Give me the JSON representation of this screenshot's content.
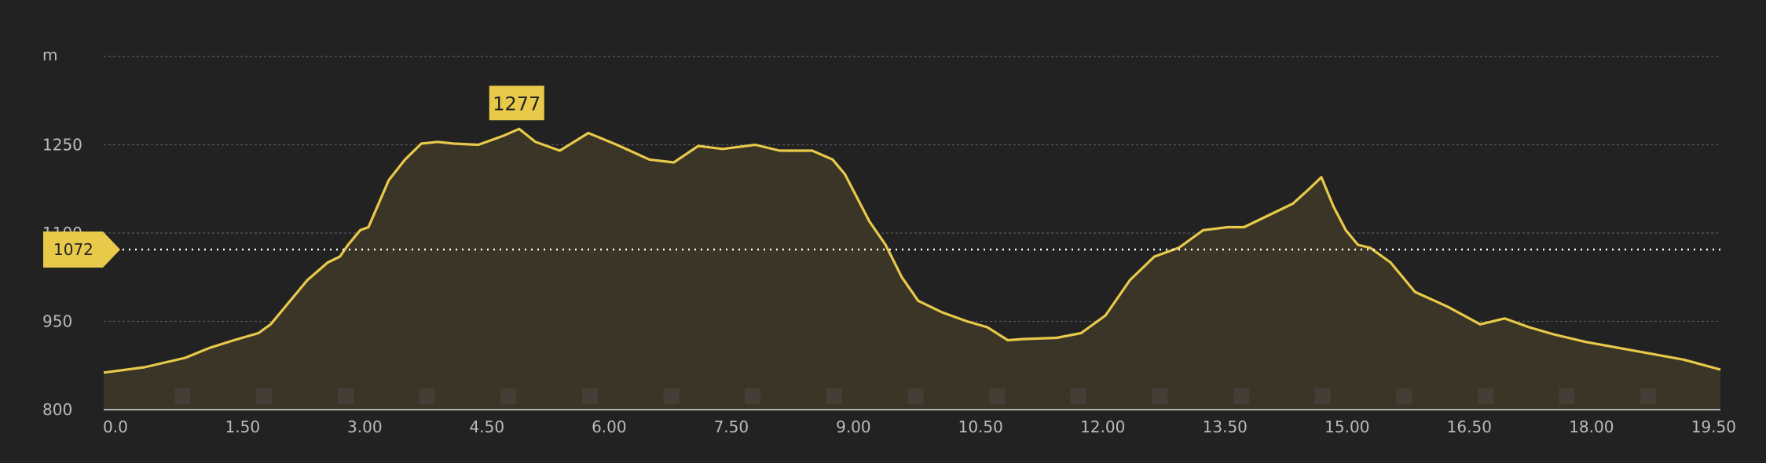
{
  "chart_data": {
    "type": "area",
    "y_unit_label": "m",
    "y_ticks": [
      800,
      950,
      1100,
      1250
    ],
    "ylim": [
      800,
      1400
    ],
    "x_ticks": [
      "0.0",
      "1.50",
      "3.00",
      "4.50",
      "6.00",
      "7.50",
      "9.00",
      "10.50",
      "12.00",
      "13.50",
      "15.00",
      "16.50",
      "18.00",
      "19.50"
    ],
    "xlim": [
      0,
      19.85
    ],
    "grid": true,
    "reference_line": {
      "value": 1072,
      "label": "1072"
    },
    "peak_marker": {
      "x": 5.1,
      "value": 1277,
      "label": "1277"
    },
    "series": [
      {
        "x": [
          0.0,
          0.5,
          1.0,
          1.3,
          1.6,
          1.9,
          2.05,
          2.2,
          2.5,
          2.75,
          2.9,
          3.0,
          3.15,
          3.25,
          3.5,
          3.7,
          3.9,
          4.1,
          4.3,
          4.6,
          4.9,
          5.1,
          5.3,
          5.6,
          5.95,
          6.3,
          6.7,
          7.0,
          7.3,
          7.6,
          8.0,
          8.3,
          8.7,
          8.95,
          9.1,
          9.4,
          9.6,
          9.8,
          10.0,
          10.3,
          10.6,
          10.85,
          11.1,
          11.3,
          11.7,
          12.0,
          12.3,
          12.6,
          12.9,
          13.2,
          13.5,
          13.8,
          14.0,
          14.3,
          14.6,
          14.8,
          14.95,
          15.1,
          15.25,
          15.4,
          15.55,
          15.8,
          16.1,
          16.5,
          16.9,
          17.2,
          17.5,
          17.8,
          18.2,
          18.6,
          19.0,
          19.4,
          19.85
        ],
        "values": [
          863,
          872,
          888,
          905,
          918,
          930,
          945,
          970,
          1020,
          1050,
          1060,
          1080,
          1105,
          1110,
          1190,
          1225,
          1252,
          1255,
          1252,
          1250,
          1265,
          1277,
          1255,
          1240,
          1270,
          1250,
          1225,
          1220,
          1248,
          1243,
          1250,
          1240,
          1240,
          1225,
          1200,
          1120,
          1080,
          1025,
          985,
          965,
          950,
          940,
          918,
          920,
          922,
          930,
          960,
          1020,
          1060,
          1075,
          1105,
          1110,
          1110,
          1130,
          1150,
          1175,
          1195,
          1145,
          1105,
          1080,
          1075,
          1050,
          1000,
          975,
          945,
          955,
          940,
          928,
          915,
          905,
          895,
          885,
          868
        ]
      }
    ]
  }
}
